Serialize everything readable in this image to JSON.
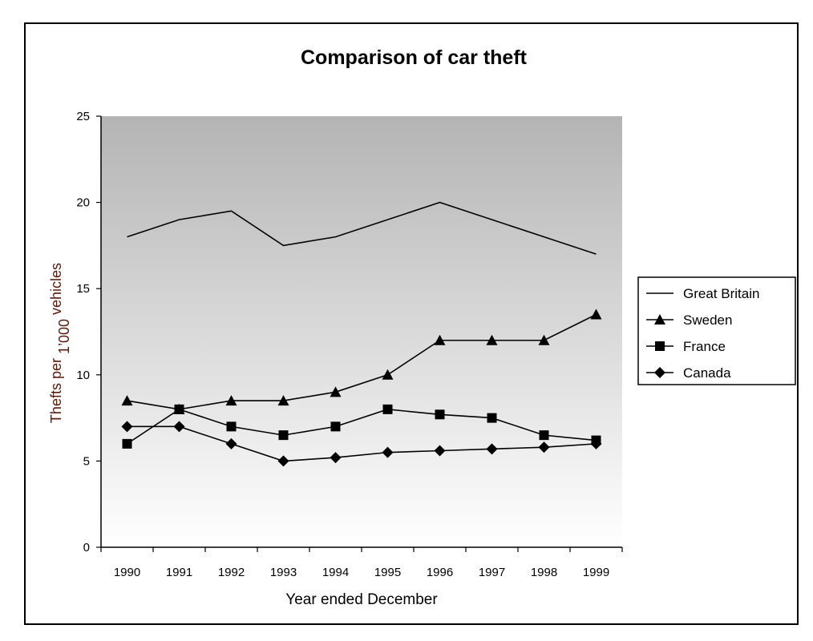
{
  "chart_data": {
    "type": "line",
    "title": "Comparison of car theft",
    "xlabel": "Year ended December",
    "ylabel_parts": [
      "Thefts per ",
      "1",
      "’000",
      " vehicles"
    ],
    "categories": [
      "1990",
      "1991",
      "1992",
      "1993",
      "1994",
      "1995",
      "1996",
      "1997",
      "1998",
      "1999"
    ],
    "ylim": [
      0,
      25
    ],
    "yticks": [
      "0",
      "5",
      "10",
      "15",
      "20",
      "25"
    ],
    "legend_position": "right",
    "background": "vertical gradient grey to white",
    "series": [
      {
        "name": "Great Britain",
        "marker": "none",
        "color": "#000000",
        "values": [
          18,
          19,
          19.5,
          17.5,
          18,
          19,
          20,
          19,
          18,
          17
        ]
      },
      {
        "name": "Sweden",
        "marker": "triangle",
        "color": "#000000",
        "values": [
          8.5,
          8,
          8.5,
          8.5,
          9,
          10,
          12,
          12,
          12,
          13.5
        ]
      },
      {
        "name": "France",
        "marker": "square",
        "color": "#000000",
        "values": [
          6,
          8,
          7,
          6.5,
          7,
          8,
          7.7,
          7.5,
          6.5,
          6.2
        ]
      },
      {
        "name": "Canada",
        "marker": "diamond",
        "color": "#000000",
        "values": [
          7,
          7,
          6,
          5,
          5.2,
          5.5,
          5.6,
          5.7,
          5.8,
          6
        ]
      }
    ]
  }
}
